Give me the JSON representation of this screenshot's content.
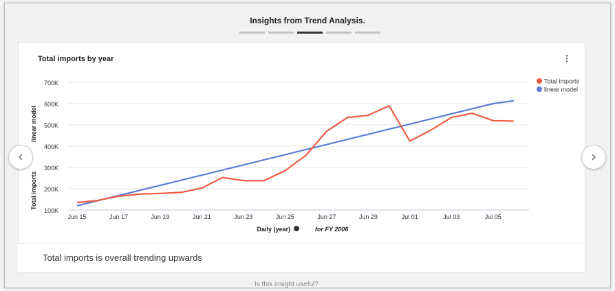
{
  "header": {
    "title": "Insights from Trend Analysis."
  },
  "pager": {
    "count": 5,
    "active": 2
  },
  "card": {
    "title": "Total imports by year"
  },
  "chart_data": {
    "type": "line",
    "title": "Total imports by year",
    "xlabel": "Daily (year)",
    "x_subtitle": "for FY 2006",
    "ylabel_series": [
      "Total imports",
      "linear model"
    ],
    "ylim": [
      100000,
      700000
    ],
    "y_ticks": [
      "100K",
      "200K",
      "300K",
      "400K",
      "500K",
      "600K",
      "700K"
    ],
    "y_tick_values": [
      100000,
      200000,
      300000,
      400000,
      500000,
      600000,
      700000
    ],
    "x_tick_labels": [
      "Jun 15",
      "Jun 17",
      "Jun 19",
      "Jun 21",
      "Jun 23",
      "Jun 25",
      "Jun 27",
      "Jun 29",
      "Jul 01",
      "Jul 03",
      "Jul 05"
    ],
    "x": [
      "Jun 15",
      "Jun 16",
      "Jun 17",
      "Jun 18",
      "Jun 19",
      "Jun 20",
      "Jun 21",
      "Jun 22",
      "Jun 23",
      "Jun 24",
      "Jun 25",
      "Jun 26",
      "Jun 27",
      "Jun 28",
      "Jun 29",
      "Jun 30",
      "Jul 01",
      "Jul 02",
      "Jul 03",
      "Jul 04",
      "Jul 05",
      "Jul 06"
    ],
    "series": [
      {
        "name": "Total imports",
        "color": "#f05a40",
        "values": [
          135000,
          145000,
          165000,
          175000,
          178000,
          183000,
          203000,
          253000,
          238000,
          238000,
          285000,
          357000,
          470000,
          535000,
          545000,
          590000,
          424000,
          475000,
          535000,
          555000,
          520000,
          518000
        ]
      },
      {
        "name": "linear model",
        "color": "#5b7fd6",
        "values": [
          120000,
          144000,
          168000,
          192000,
          216000,
          240000,
          264000,
          288000,
          312000,
          336000,
          360000,
          384000,
          408000,
          432000,
          456000,
          480000,
          504000,
          528000,
          552000,
          576000,
          600000,
          614000
        ]
      }
    ],
    "legend_position": "top-right",
    "grid": true
  },
  "summary": {
    "text": "Total imports is overall trending upwards"
  },
  "footer": {
    "partial_text": "Is this insight useful?"
  },
  "colors": {
    "active_pager": "#333333",
    "inactive_pager": "#c4c4c4"
  },
  "icons": {
    "prev": "chevron-left-icon",
    "next": "chevron-right-icon",
    "more": "more-vertical-icon"
  }
}
